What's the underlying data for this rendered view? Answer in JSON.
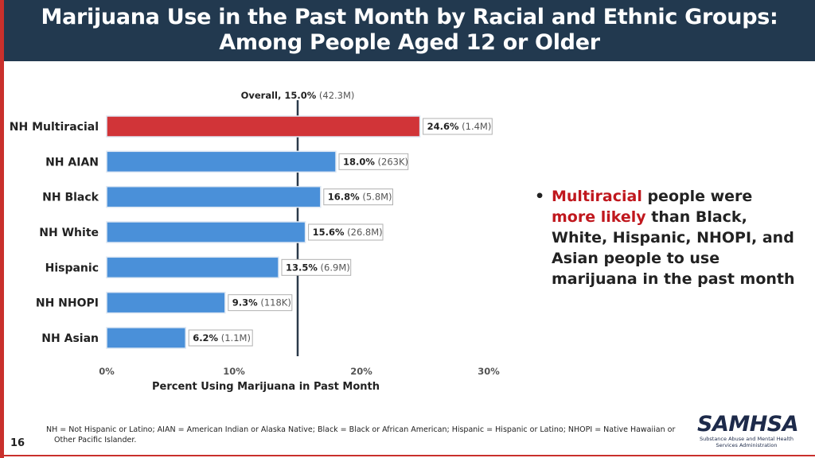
{
  "slide": {
    "title_line1": "Marijuana Use in the Past Month by Racial and Ethnic Groups:",
    "title_line2": "Among People Aged 12 or Older",
    "page_number": "16",
    "footnote_line1": "NH = Not Hispanic or Latino; AIAN = American Indian or Alaska Native; Black = Black or African American; Hispanic = Hispanic or Latino; NHOPI = Native Hawaiian or",
    "footnote_line2": "Other Pacific Islander.",
    "logo_text": "SAMHSA",
    "logo_subtitle_line1": "Substance Abuse and Mental Health",
    "logo_subtitle_line2": "Services Administration"
  },
  "bullet": {
    "part1": "Multiracial",
    "part2": " people were ",
    "part3": "more likely",
    "part4": " than Black, White, Hispanic, NHOPI, and Asian people to use marijuana in the past month"
  },
  "colors": {
    "title_bg": "#22394f",
    "highlight_bar": "#d13438",
    "bar": "#4a90d9",
    "accent_red": "#c0181e"
  },
  "chart_data": {
    "type": "bar",
    "orientation": "horizontal",
    "xlabel": "Percent Using Marijuana in Past Month",
    "xlim": [
      0,
      30
    ],
    "xticks": [
      0,
      10,
      20,
      30
    ],
    "xtick_labels": [
      "0%",
      "10%",
      "20%",
      "30%"
    ],
    "reference_line": {
      "value": 15.0,
      "label_bold": "Overall, 15.0%",
      "label_rest": " (42.3M)"
    },
    "categories": [
      "NH Multiracial",
      "NH AIAN",
      "NH Black",
      "NH White",
      "Hispanic",
      "NH NHOPI",
      "NH Asian"
    ],
    "values": [
      24.6,
      18.0,
      16.8,
      15.6,
      13.5,
      9.3,
      6.2
    ],
    "value_labels": [
      "24.6%",
      "18.0%",
      "16.8%",
      "15.6%",
      "13.5%",
      "9.3%",
      "6.2%"
    ],
    "count_labels": [
      "(1.4M)",
      "(263K)",
      "(5.8M)",
      "(26.8M)",
      "(6.9M)",
      "(118K)",
      "(1.1M)"
    ],
    "highlight_index": 0
  }
}
